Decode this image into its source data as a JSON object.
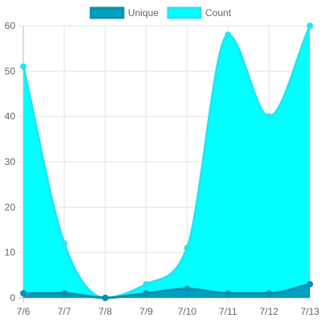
{
  "chart_data": {
    "type": "area",
    "categories": [
      "7/6",
      "7/7",
      "7/8",
      "7/9",
      "7/10",
      "7/11",
      "7/12",
      "7/13"
    ],
    "series": [
      {
        "name": "Unique",
        "values": [
          1,
          1,
          0,
          1,
          2,
          1,
          1,
          3
        ],
        "fill_color": "#00a0c0",
        "line_color": "#0a8fae",
        "point_color": "#0a8fae"
      },
      {
        "name": "Count",
        "values": [
          51,
          12,
          0,
          3,
          11,
          58,
          40,
          60
        ],
        "fill_color": "#00ffff",
        "line_color": "#22e6f2",
        "point_color": "#22e6f2"
      }
    ],
    "ylim": [
      0,
      60
    ],
    "y_ticks": [
      0,
      10,
      20,
      30,
      40,
      50,
      60
    ],
    "grid": true,
    "legend_position": "top",
    "line_smoothing": "monotone"
  }
}
